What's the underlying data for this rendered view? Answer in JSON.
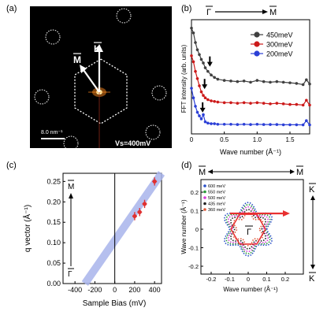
{
  "panel_a": {
    "label": "(a)",
    "m_label": "M",
    "k_label": "K",
    "scale_label": "8.0 nm⁻¹",
    "vs_label": "Vs=400mV",
    "colors": {
      "background": "#000000",
      "spot": "#ff8a1e",
      "hex": "#ffffff"
    }
  },
  "chart_data": [
    {
      "panel": "(b)",
      "type": "line",
      "ylabel": "FFT intensity (arb. units)",
      "xlabel": "Wave number (Å⁻¹)",
      "top_left": "Γ",
      "top_right": "M",
      "xlim": [
        0,
        1.8
      ],
      "xticks": [
        "0",
        "0.5",
        "1.0",
        "1.5"
      ],
      "legend_placement": "top-right",
      "series": [
        {
          "name": "450meV",
          "color": "#404040",
          "x": [
            0.0,
            0.03,
            0.06,
            0.09,
            0.12,
            0.15,
            0.18,
            0.21,
            0.25,
            0.3,
            0.35,
            0.4,
            0.5,
            0.6,
            0.7,
            0.8,
            0.9,
            1.0,
            1.1,
            1.2,
            1.3,
            1.4,
            1.5,
            1.6,
            1.7,
            1.75,
            1.8
          ],
          "y": [
            8.8,
            8.4,
            7.6,
            7.0,
            6.6,
            6.2,
            5.9,
            5.5,
            5.2,
            4.9,
            4.7,
            4.55,
            4.45,
            4.4,
            4.35,
            4.4,
            4.3,
            4.45,
            4.35,
            4.3,
            4.35,
            4.3,
            4.25,
            4.2,
            4.1,
            4.5,
            4.15
          ]
        },
        {
          "name": "300meV",
          "color": "#cc1a1a",
          "x": [
            0.0,
            0.03,
            0.06,
            0.09,
            0.12,
            0.15,
            0.18,
            0.21,
            0.25,
            0.3,
            0.35,
            0.4,
            0.5,
            0.6,
            0.7,
            0.8,
            0.9,
            1.0,
            1.1,
            1.2,
            1.3,
            1.4,
            1.5,
            1.6,
            1.7,
            1.75,
            1.8
          ],
          "y": [
            6.5,
            6.0,
            5.2,
            4.6,
            4.0,
            3.5,
            3.2,
            3.0,
            2.85,
            2.75,
            2.7,
            2.65,
            2.6,
            2.6,
            2.55,
            2.6,
            2.55,
            2.6,
            2.55,
            2.5,
            2.55,
            2.5,
            2.45,
            2.45,
            2.4,
            2.8,
            2.4
          ]
        },
        {
          "name": "200meV",
          "color": "#2b3fd6",
          "x": [
            0.0,
            0.03,
            0.06,
            0.09,
            0.12,
            0.15,
            0.18,
            0.21,
            0.25,
            0.3,
            0.35,
            0.4,
            0.5,
            0.6,
            0.7,
            0.8,
            0.9,
            1.0,
            1.1,
            1.2,
            1.3,
            1.4,
            1.5,
            1.6,
            1.7,
            1.75,
            1.8
          ],
          "y": [
            3.8,
            3.0,
            2.3,
            1.8,
            1.5,
            1.25,
            1.6,
            1.0,
            0.9,
            0.85,
            0.85,
            0.8,
            0.8,
            0.8,
            0.78,
            0.8,
            0.78,
            0.8,
            0.78,
            0.78,
            0.78,
            0.76,
            0.76,
            0.76,
            0.75,
            1.1,
            0.75
          ]
        }
      ],
      "arrows_at_x": [
        0.28,
        0.2,
        0.17
      ]
    },
    {
      "panel": "(c)",
      "type": "scatter",
      "ylabel": "q vector (Å⁻¹)",
      "xlabel": "Sample Bias (mV)",
      "xlim": [
        -520,
        470
      ],
      "ylim": [
        0,
        0.27
      ],
      "xticks": [
        -400,
        -200,
        0,
        200,
        400
      ],
      "yticks": [
        0.0,
        0.05,
        0.1,
        0.15,
        0.2,
        0.25
      ],
      "left_top_label": "M",
      "left_bottom_label": "Γ",
      "x": [
        200,
        250,
        300,
        400
      ],
      "y": [
        0.165,
        0.175,
        0.195,
        0.25
      ],
      "yerr": [
        0.01,
        0.01,
        0.01,
        0.01
      ],
      "fit_line": {
        "x": [
          -300,
          470
        ],
        "y": [
          0.0,
          0.27
        ],
        "color": "#a9b4ec"
      },
      "marker_color": "#e03030"
    },
    {
      "panel": "(d)",
      "type": "scatter",
      "ylabel": "Wave number (Å⁻¹)",
      "xlabel": "Wave number (Å⁻¹)",
      "xlim": [
        -0.26,
        0.26
      ],
      "ylim": [
        -0.26,
        0.26
      ],
      "xticks": [
        "-0.2",
        "-0.1",
        "0",
        "0.1",
        "0.2"
      ],
      "yticks": [
        "-0.2",
        "-0.1",
        "0",
        "0.1",
        "0.2"
      ],
      "center_label": "Γ",
      "top_left": "M",
      "top_right": "M",
      "right_top": "K",
      "right_bottom": "K",
      "legend_placement": "top-left",
      "series": [
        {
          "name": "600 meV",
          "color": "#2a4fc8",
          "radius": 0.245
        },
        {
          "name": "550 meV",
          "color": "#2a9a3a",
          "radius": 0.225
        },
        {
          "name": "500 meV",
          "color": "#d83ad8",
          "radius": 0.205
        },
        {
          "name": "435 meV",
          "color": "#202020",
          "radius": 0.18
        },
        {
          "name": "360 meV",
          "color": "#e05a3a",
          "radius": 0.15
        }
      ],
      "hexagon_color": "#e83030",
      "hexagon_radius": 0.12
    }
  ]
}
